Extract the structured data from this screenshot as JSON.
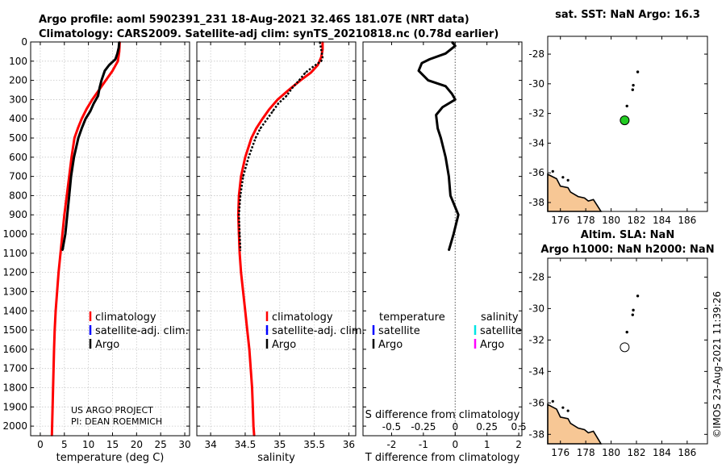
{
  "header": {
    "title_line1": "Argo profile: aoml 5902391_231 18-Aug-2021 32.46S 181.07E (NRT data)",
    "title_line2": "Climatology: CARS2009. Satellite-adj clim: synTS_20210818.nc (0.78d earlier)"
  },
  "credit": {
    "project": "US ARGO PROJECT",
    "pi": "PI: DEAN ROEMMICH",
    "stamp": "©IMOS 23-Aug-2021 11:39:26"
  },
  "colors": {
    "climatology": "#ff0000",
    "satellite": "#0000ff",
    "argo": "#000000",
    "sal_satellite": "#00e5e5",
    "sal_argo": "#ff00ff",
    "sst_marker": "#22cc22",
    "land": "#f7c795"
  },
  "legend": {
    "climatology": "climatology",
    "satellite": "satellite-adj. clim.",
    "argo": "Argo",
    "temperature": "temperature",
    "salinity": "salinity",
    "satellite_short": "satellite"
  },
  "maps": {
    "top_title": "sat. SST: NaN Argo: 16.3",
    "bottom_title_line1": "Altim. SLA: NaN",
    "bottom_title_line2": "Argo h1000: NaN h2000: NaN",
    "lon_ticks": [
      176,
      178,
      180,
      182,
      184,
      186
    ],
    "lat_ticks": [
      -28,
      -30,
      -32,
      -34,
      -36,
      -38
    ],
    "lon_range": [
      175,
      187.6
    ],
    "lat_range": [
      -38.6,
      -26.8
    ],
    "profile_position": {
      "lon": 181.07,
      "lat": -32.46
    },
    "track": [
      {
        "lon": 182.1,
        "lat": -29.2
      },
      {
        "lon": 181.75,
        "lat": -30.1
      },
      {
        "lon": 181.7,
        "lat": -30.4
      },
      {
        "lon": 181.25,
        "lat": -31.5
      }
    ]
  },
  "chart_data": [
    {
      "type": "line",
      "xlabel": "temperature (deg C)",
      "ylabel": "",
      "xlim": [
        -2,
        31
      ],
      "ylim": [
        2050,
        0
      ],
      "x_ticks": [
        0,
        5,
        10,
        15,
        20,
        25,
        30
      ],
      "y_ticks": [
        0,
        100,
        200,
        300,
        400,
        500,
        600,
        700,
        800,
        900,
        1000,
        1100,
        1200,
        1300,
        1400,
        1500,
        1600,
        1700,
        1800,
        1900,
        2000
      ],
      "grid": true,
      "series": [
        {
          "name": "climatology",
          "values": [
            [
              16.5,
              0
            ],
            [
              16.4,
              50
            ],
            [
              16.1,
              100
            ],
            [
              15.0,
              150
            ],
            [
              13.6,
              200
            ],
            [
              12.2,
              250
            ],
            [
              10.8,
              300
            ],
            [
              9.6,
              350
            ],
            [
              8.6,
              400
            ],
            [
              7.8,
              450
            ],
            [
              7.1,
              500
            ],
            [
              6.5,
              600
            ],
            [
              6.0,
              700
            ],
            [
              5.5,
              800
            ],
            [
              5.0,
              900
            ],
            [
              4.6,
              1000
            ],
            [
              4.2,
              1100
            ],
            [
              3.8,
              1200
            ],
            [
              3.5,
              1300
            ],
            [
              3.2,
              1400
            ],
            [
              3.0,
              1500
            ],
            [
              2.85,
              1600
            ],
            [
              2.75,
              1700
            ],
            [
              2.65,
              1800
            ],
            [
              2.55,
              1900
            ],
            [
              2.45,
              2000
            ],
            [
              2.4,
              2050
            ]
          ]
        },
        {
          "name": "Argo",
          "values": [
            [
              16.4,
              0
            ],
            [
              16.3,
              30
            ],
            [
              16.0,
              60
            ],
            [
              15.6,
              90
            ],
            [
              14.3,
              120
            ],
            [
              13.4,
              150
            ],
            [
              12.7,
              200
            ],
            [
              12.3,
              240
            ],
            [
              12.0,
              280
            ],
            [
              11.1,
              320
            ],
            [
              10.4,
              360
            ],
            [
              9.4,
              400
            ],
            [
              8.6,
              450
            ],
            [
              7.9,
              500
            ],
            [
              7.0,
              600
            ],
            [
              6.4,
              700
            ],
            [
              6.0,
              800
            ],
            [
              5.6,
              900
            ],
            [
              5.2,
              1000
            ],
            [
              4.6,
              1085
            ]
          ]
        }
      ]
    },
    {
      "type": "line",
      "xlabel": "salinity",
      "ylabel": "",
      "xlim": [
        33.8,
        36.1
      ],
      "ylim": [
        2050,
        0
      ],
      "x_ticks": [
        34,
        34.5,
        35,
        35.5,
        36
      ],
      "grid": true,
      "series": [
        {
          "name": "climatology",
          "values": [
            [
              35.62,
              0
            ],
            [
              35.62,
              40
            ],
            [
              35.6,
              80
            ],
            [
              35.55,
              120
            ],
            [
              35.45,
              160
            ],
            [
              35.3,
              200
            ],
            [
              35.13,
              250
            ],
            [
              34.97,
              300
            ],
            [
              34.85,
              350
            ],
            [
              34.75,
              400
            ],
            [
              34.66,
              450
            ],
            [
              34.59,
              500
            ],
            [
              34.5,
              600
            ],
            [
              34.44,
              700
            ],
            [
              34.41,
              800
            ],
            [
              34.4,
              900
            ],
            [
              34.41,
              1000
            ],
            [
              34.42,
              1100
            ],
            [
              34.44,
              1200
            ],
            [
              34.47,
              1300
            ],
            [
              34.5,
              1400
            ],
            [
              34.53,
              1500
            ],
            [
              34.56,
              1600
            ],
            [
              34.58,
              1700
            ],
            [
              34.6,
              1800
            ],
            [
              34.61,
              1900
            ],
            [
              34.62,
              2000
            ],
            [
              34.63,
              2050
            ]
          ]
        },
        {
          "name": "Argo",
          "values": [
            [
              35.58,
              0
            ],
            [
              35.6,
              40
            ],
            [
              35.62,
              80
            ],
            [
              35.6,
              100
            ],
            [
              35.48,
              130
            ],
            [
              35.37,
              160
            ],
            [
              35.28,
              200
            ],
            [
              35.18,
              240
            ],
            [
              35.1,
              280
            ],
            [
              34.98,
              320
            ],
            [
              34.9,
              360
            ],
            [
              34.82,
              400
            ],
            [
              34.72,
              450
            ],
            [
              34.65,
              500
            ],
            [
              34.55,
              600
            ],
            [
              34.47,
              700
            ],
            [
              34.43,
              800
            ],
            [
              34.41,
              900
            ],
            [
              34.42,
              1000
            ],
            [
              34.43,
              1085
            ]
          ]
        }
      ]
    },
    {
      "type": "line",
      "xlabel": "T difference from climatology",
      "xlabel_top": "S difference from climatology",
      "ylabel": "",
      "xlim": [
        -2.9,
        2.1
      ],
      "ylim": [
        2050,
        0
      ],
      "x_ticks": [
        -2,
        -1,
        0,
        1,
        2
      ],
      "x_ticks_top": [
        "-0.5",
        "-0.25",
        "0",
        "0.25",
        "0.5"
      ],
      "grid": false,
      "series": [
        {
          "name": "Argo temperature",
          "values": [
            [
              -0.1,
              0
            ],
            [
              0.0,
              20
            ],
            [
              -0.3,
              60
            ],
            [
              -0.8,
              90
            ],
            [
              -1.05,
              110
            ],
            [
              -1.15,
              150
            ],
            [
              -0.85,
              200
            ],
            [
              -0.3,
              230
            ],
            [
              -0.1,
              270
            ],
            [
              0.0,
              300
            ],
            [
              -0.4,
              340
            ],
            [
              -0.6,
              380
            ],
            [
              -0.55,
              450
            ],
            [
              -0.45,
              500
            ],
            [
              -0.3,
              600
            ],
            [
              -0.2,
              700
            ],
            [
              -0.15,
              800
            ],
            [
              0.1,
              900
            ],
            [
              -0.05,
              1000
            ],
            [
              -0.2,
              1085
            ]
          ]
        }
      ]
    }
  ]
}
